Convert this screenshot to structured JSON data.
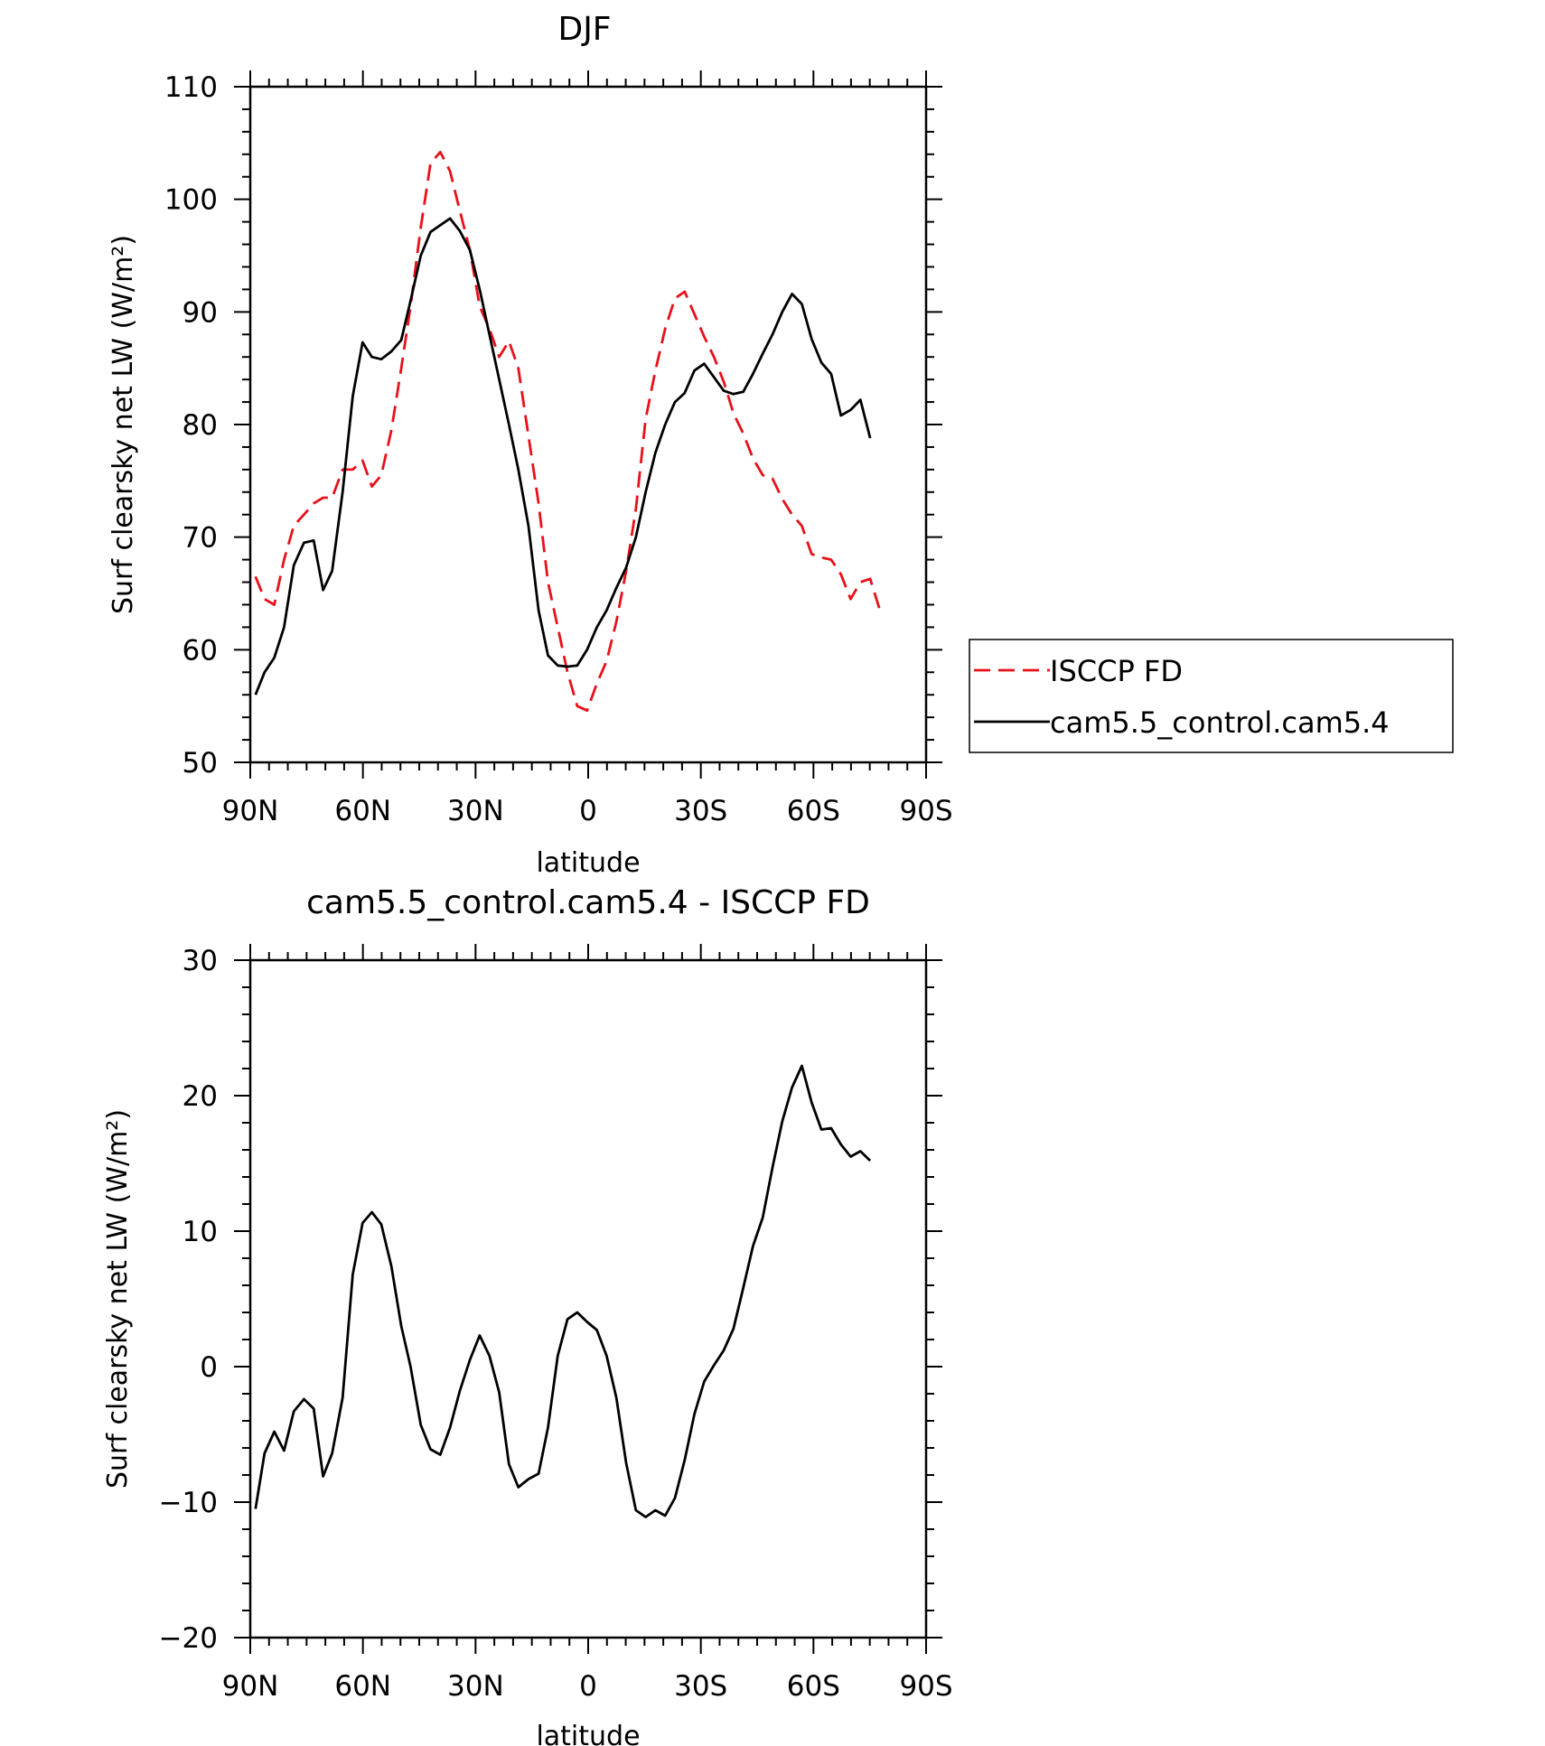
{
  "colors": {
    "obs": "#e8101a",
    "model": "#000000"
  },
  "chart_data": [
    {
      "type": "line",
      "title": "DJF",
      "xlabel": "latitude",
      "ylabel": "Surf clearsky net LW (W/m²)",
      "xlim": [
        -90,
        90
      ],
      "ylim": [
        50,
        110
      ],
      "xticks": [
        {
          "value": -90,
          "label": "90N"
        },
        {
          "value": -60,
          "label": "60N"
        },
        {
          "value": -30,
          "label": "30N"
        },
        {
          "value": 0,
          "label": "0"
        },
        {
          "value": 30,
          "label": "30S"
        },
        {
          "value": 60,
          "label": "60S"
        },
        {
          "value": 90,
          "label": "90S"
        }
      ],
      "yticks": [
        50,
        60,
        70,
        80,
        90,
        100,
        110
      ],
      "legend": {
        "placement": "outside-right",
        "entries": [
          "ISCCP FD",
          "cam5.5_control.cam5.4"
        ]
      },
      "series": [
        {
          "name": "ISCCP FD",
          "style": "dashed",
          "color": "#e8101a",
          "x": [
            -88.6,
            -86.2,
            -83.6,
            -81.0,
            -78.4,
            -75.7,
            -73.1,
            -70.6,
            -68.2,
            -65.4,
            -62.7,
            -60.1,
            -57.6,
            -55.1,
            -52.4,
            -49.8,
            -47.3,
            -44.6,
            -42.0,
            -39.4,
            -36.8,
            -34.2,
            -31.5,
            -28.9,
            -26.3,
            -23.7,
            -21.1,
            -18.6,
            -15.9,
            -13.2,
            -10.7,
            -8.1,
            -5.5,
            -2.9,
            -0.3,
            2.3,
            4.9,
            7.5,
            10.1,
            12.7,
            15.3,
            17.9,
            20.5,
            23.1,
            25.7,
            28.3,
            30.9,
            33.5,
            36.1,
            38.7,
            41.3,
            43.9,
            46.5,
            49.1,
            51.7,
            54.3,
            56.9,
            59.5,
            62.1,
            64.7,
            67.3,
            69.9,
            72.5,
            75.1,
            77.7,
            80.3,
            82.9,
            85.5,
            88.1
          ],
          "values": [
            66.5,
            64.5,
            64.0,
            68.0,
            71.0,
            72.0,
            73.0,
            73.5,
            73.5,
            76.0,
            76.0,
            76.8,
            74.5,
            75.5,
            79.5,
            85.0,
            90.5,
            97.5,
            103.2,
            104.2,
            102.5,
            99.0,
            95.5,
            90.5,
            88.5,
            86.0,
            87.4,
            85.0,
            79.0,
            73.0,
            66.0,
            62.0,
            58.0,
            55.0,
            54.6,
            57.0,
            59.0,
            62.5,
            67.0,
            72.5,
            80.5,
            84.8,
            88.5,
            91.2,
            91.8,
            89.8,
            87.8,
            86.0,
            83.8,
            81.0,
            79.2,
            77.0,
            75.5,
            75.2,
            73.4,
            72.0,
            71.0,
            68.5,
            68.2,
            68.0,
            66.7,
            64.5,
            66.0,
            66.3,
            63.5,
            null,
            null,
            null,
            null
          ]
        },
        {
          "name": "cam5.5_control.cam5.4",
          "style": "solid",
          "color": "#000000",
          "x": [
            -88.6,
            -86.2,
            -83.6,
            -81.0,
            -78.4,
            -75.7,
            -73.1,
            -70.6,
            -68.2,
            -65.4,
            -62.7,
            -60.1,
            -57.6,
            -55.1,
            -52.4,
            -49.8,
            -47.3,
            -44.6,
            -42.0,
            -39.4,
            -36.8,
            -34.2,
            -31.5,
            -28.9,
            -26.3,
            -23.7,
            -21.1,
            -18.6,
            -15.9,
            -13.2,
            -10.7,
            -8.1,
            -5.5,
            -2.9,
            -0.3,
            2.3,
            4.9,
            7.5,
            10.1,
            12.7,
            15.3,
            17.9,
            20.5,
            23.1,
            25.7,
            28.3,
            30.9,
            33.5,
            36.1,
            38.7,
            41.3,
            43.9,
            46.5,
            49.1,
            51.7,
            54.3,
            56.9,
            59.5,
            62.1,
            64.7,
            67.3,
            69.9,
            72.5,
            75.1,
            77.7,
            80.3,
            82.9,
            85.5,
            88.1
          ],
          "values": [
            56.0,
            58.0,
            59.3,
            62.0,
            67.5,
            69.5,
            69.7,
            65.3,
            67.0,
            74.0,
            82.5,
            87.3,
            86.0,
            85.8,
            86.5,
            87.5,
            91.0,
            95.0,
            97.1,
            97.7,
            98.3,
            97.2,
            95.5,
            92.0,
            88.0,
            84.0,
            80.0,
            76.0,
            71.0,
            63.5,
            59.5,
            58.6,
            58.5,
            58.6,
            60.0,
            62.0,
            63.5,
            65.5,
            67.3,
            70.0,
            74.0,
            77.5,
            80.0,
            82.0,
            82.8,
            84.8,
            85.4,
            84.2,
            83.0,
            82.7,
            82.9,
            84.5,
            86.3,
            88.0,
            90.0,
            91.6,
            90.7,
            87.6,
            85.5,
            84.5,
            80.8,
            81.3,
            82.2,
            78.8,
            null,
            null,
            null,
            null,
            null
          ]
        }
      ]
    },
    {
      "type": "line",
      "title": "cam5.5_control.cam5.4 - ISCCP FD",
      "xlabel": "latitude",
      "ylabel": "Surf clearsky net LW (W/m²)",
      "xlim": [
        -90,
        90
      ],
      "ylim": [
        -20,
        30
      ],
      "xticks": [
        {
          "value": -90,
          "label": "90N"
        },
        {
          "value": -60,
          "label": "60N"
        },
        {
          "value": -30,
          "label": "30N"
        },
        {
          "value": 0,
          "label": "0"
        },
        {
          "value": 30,
          "label": "30S"
        },
        {
          "value": 60,
          "label": "60S"
        },
        {
          "value": 90,
          "label": "90S"
        }
      ],
      "yticks": [
        -20,
        -10,
        0,
        10,
        20,
        30
      ],
      "series": [
        {
          "name": "cam5.5_control.cam5.4 - ISCCP FD",
          "style": "solid",
          "color": "#000000",
          "x": [
            -88.6,
            -86.2,
            -83.6,
            -81.0,
            -78.4,
            -75.7,
            -73.1,
            -70.6,
            -68.2,
            -65.4,
            -62.7,
            -60.1,
            -57.6,
            -55.1,
            -52.4,
            -49.8,
            -47.3,
            -44.6,
            -42.0,
            -39.4,
            -36.8,
            -34.2,
            -31.5,
            -28.9,
            -26.3,
            -23.7,
            -21.1,
            -18.6,
            -15.9,
            -13.2,
            -10.7,
            -8.1,
            -5.5,
            -2.9,
            -0.3,
            2.3,
            4.9,
            7.5,
            10.1,
            12.7,
            15.3,
            17.9,
            20.5,
            23.1,
            25.7,
            28.3,
            30.9,
            33.5,
            36.1,
            38.7,
            41.3,
            43.9,
            46.5,
            49.1,
            51.7,
            54.3,
            56.9,
            59.5,
            62.1,
            64.7,
            67.3,
            69.9,
            72.5,
            75.1,
            77.7,
            80.3,
            82.9,
            85.5,
            88.1
          ],
          "values": [
            -10.5,
            -6.4,
            -4.8,
            -6.2,
            -3.3,
            -2.4,
            -3.1,
            -8.1,
            -6.4,
            -2.3,
            6.8,
            10.6,
            11.4,
            10.5,
            7.4,
            3.0,
            0.0,
            -4.3,
            -6.1,
            -6.5,
            -4.5,
            -1.8,
            0.5,
            2.3,
            0.8,
            -1.9,
            -7.2,
            -8.9,
            -8.3,
            -7.9,
            -4.5,
            0.8,
            3.5,
            4.0,
            3.3,
            2.7,
            0.8,
            -2.3,
            -7.1,
            -10.6,
            -11.1,
            -10.6,
            -11.0,
            -9.7,
            -6.9,
            -3.5,
            -1.1,
            0.1,
            1.2,
            2.8,
            5.8,
            8.9,
            11.0,
            14.7,
            18.1,
            20.6,
            22.2,
            19.5,
            17.5,
            17.6,
            16.4,
            15.5,
            15.9,
            15.2,
            null,
            null,
            null,
            null,
            null
          ]
        }
      ]
    }
  ]
}
